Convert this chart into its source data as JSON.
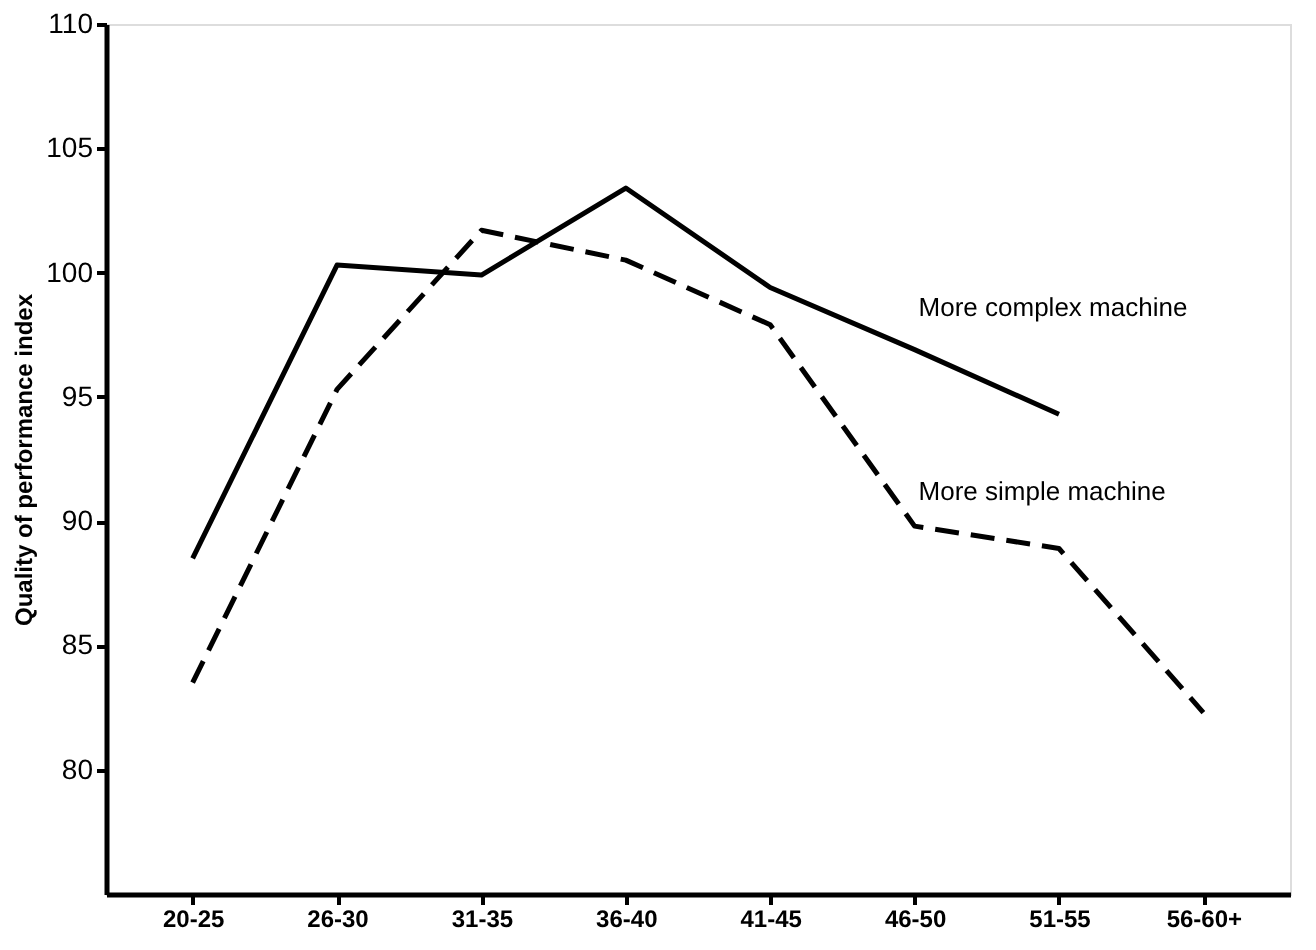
{
  "chart_data": {
    "type": "line",
    "ylabel": "Quality of performance index",
    "categories": [
      "20-25",
      "26-30",
      "31-35",
      "36-40",
      "41-45",
      "46-50",
      "51-55",
      "56-60+"
    ],
    "ylim": [
      75,
      110
    ],
    "yticks": [
      80,
      85,
      90,
      95,
      100,
      105,
      110
    ],
    "grid": false,
    "legend": false,
    "marker": "none",
    "series": [
      {
        "name": "More complex machine",
        "color": "#000000",
        "line_style": "solid",
        "values": [
          88.5,
          100.3,
          99.9,
          103.4,
          99.4,
          96.9,
          94.3,
          null
        ]
      },
      {
        "name": "More simple machine",
        "color": "#000000",
        "line_style": "dashed",
        "values": [
          83.5,
          95.3,
          101.7,
          100.5,
          97.9,
          89.8,
          88.9,
          82.3
        ]
      }
    ]
  }
}
